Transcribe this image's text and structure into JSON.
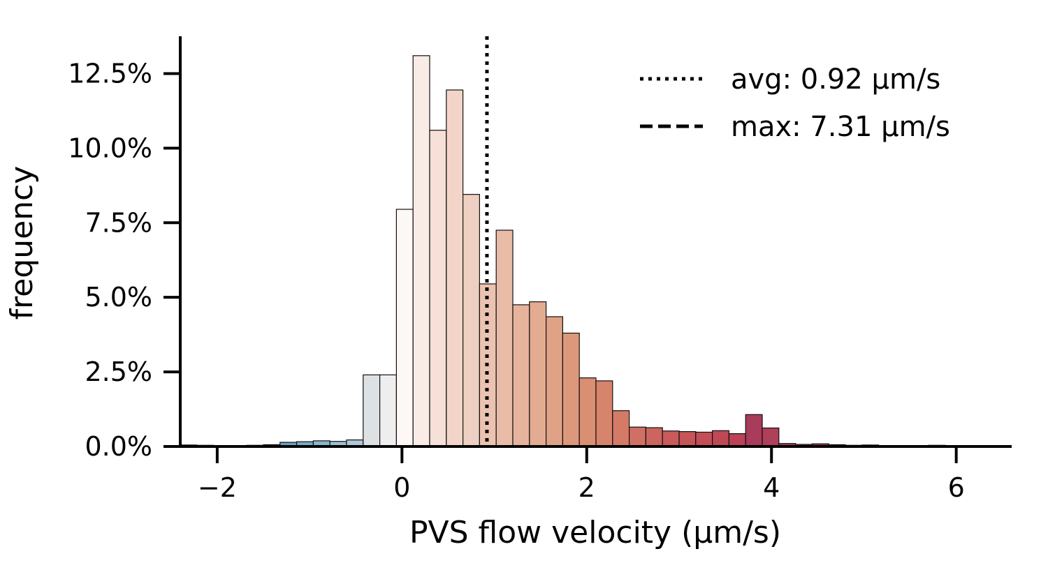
{
  "chart_data": {
    "type": "bar",
    "title": "",
    "xlabel": "PVS flow velocity (µm/s)",
    "ylabel": "frequency",
    "xlim": [
      -2.4,
      6.6
    ],
    "ylim": [
      0,
      0.1375
    ],
    "x_ticks": [
      -2,
      0,
      2,
      4,
      6
    ],
    "x_tick_labels": [
      "−2",
      "0",
      "2",
      "4",
      "6"
    ],
    "y_ticks": [
      0,
      0.025,
      0.05,
      0.075,
      0.1,
      0.125
    ],
    "y_tick_labels": [
      "0.0%",
      "2.5%",
      "5.0%",
      "7.5%",
      "10.0%",
      "12.5%"
    ],
    "grid": false,
    "bin_width": 0.18,
    "bin_start": -2.4,
    "values": [
      0.0005,
      0.0004,
      0.0003,
      0.0003,
      0.0004,
      0.0006,
      0.0014,
      0.0016,
      0.0019,
      0.0017,
      0.0022,
      0.024,
      0.024,
      0.0795,
      0.131,
      0.106,
      0.1195,
      0.0845,
      0.0545,
      0.0725,
      0.0475,
      0.0485,
      0.0435,
      0.038,
      0.023,
      0.022,
      0.012,
      0.0065,
      0.0063,
      0.0052,
      0.005,
      0.0048,
      0.0053,
      0.0043,
      0.0107,
      0.0062,
      0.001,
      0.0007,
      0.0009,
      0.0006,
      0.0004,
      0.0005,
      0.0003,
      0.0002,
      0.0002,
      0.0004,
      0.0003,
      0.0002,
      0.0002
    ],
    "colors": [
      "#2b6a9b",
      "#3373a3",
      "#3b7cab",
      "#4586b3",
      "#4d8dba",
      "#5a97c0",
      "#6aa2c6",
      "#79abca",
      "#8ab5ce",
      "#9bbfd3",
      "#adc8d8",
      "#dde1e4",
      "#eeeeee",
      "#fdf8f6",
      "#f9ebe5",
      "#f6e0d7",
      "#f2d5c8",
      "#eed0c2",
      "#ecc3b1",
      "#e9bca8",
      "#e6b49d",
      "#e3ab92",
      "#e0a286",
      "#dd987b",
      "#da8e72",
      "#d7846c",
      "#d47a67",
      "#d06f63",
      "#cc655f",
      "#c95c5b",
      "#c65458",
      "#c34e57",
      "#bf4856",
      "#bb4256",
      "#a93b5b",
      "#b03f59",
      "#ad3b58",
      "#a93758",
      "#a53357",
      "#a12f57",
      "#9d2b57",
      "#992756",
      "#942355",
      "#901f55",
      "#8c1b54",
      "#881754",
      "#841353",
      "#800f53",
      "#7c0b52"
    ],
    "reference_lines": [
      {
        "label": "avg: 0.92 µm/s",
        "x": 0.92,
        "style": "dotted"
      },
      {
        "label": "max: 7.31 µm/s",
        "x": 7.31,
        "style": "dashed"
      }
    ],
    "legend_position": "top-right"
  }
}
